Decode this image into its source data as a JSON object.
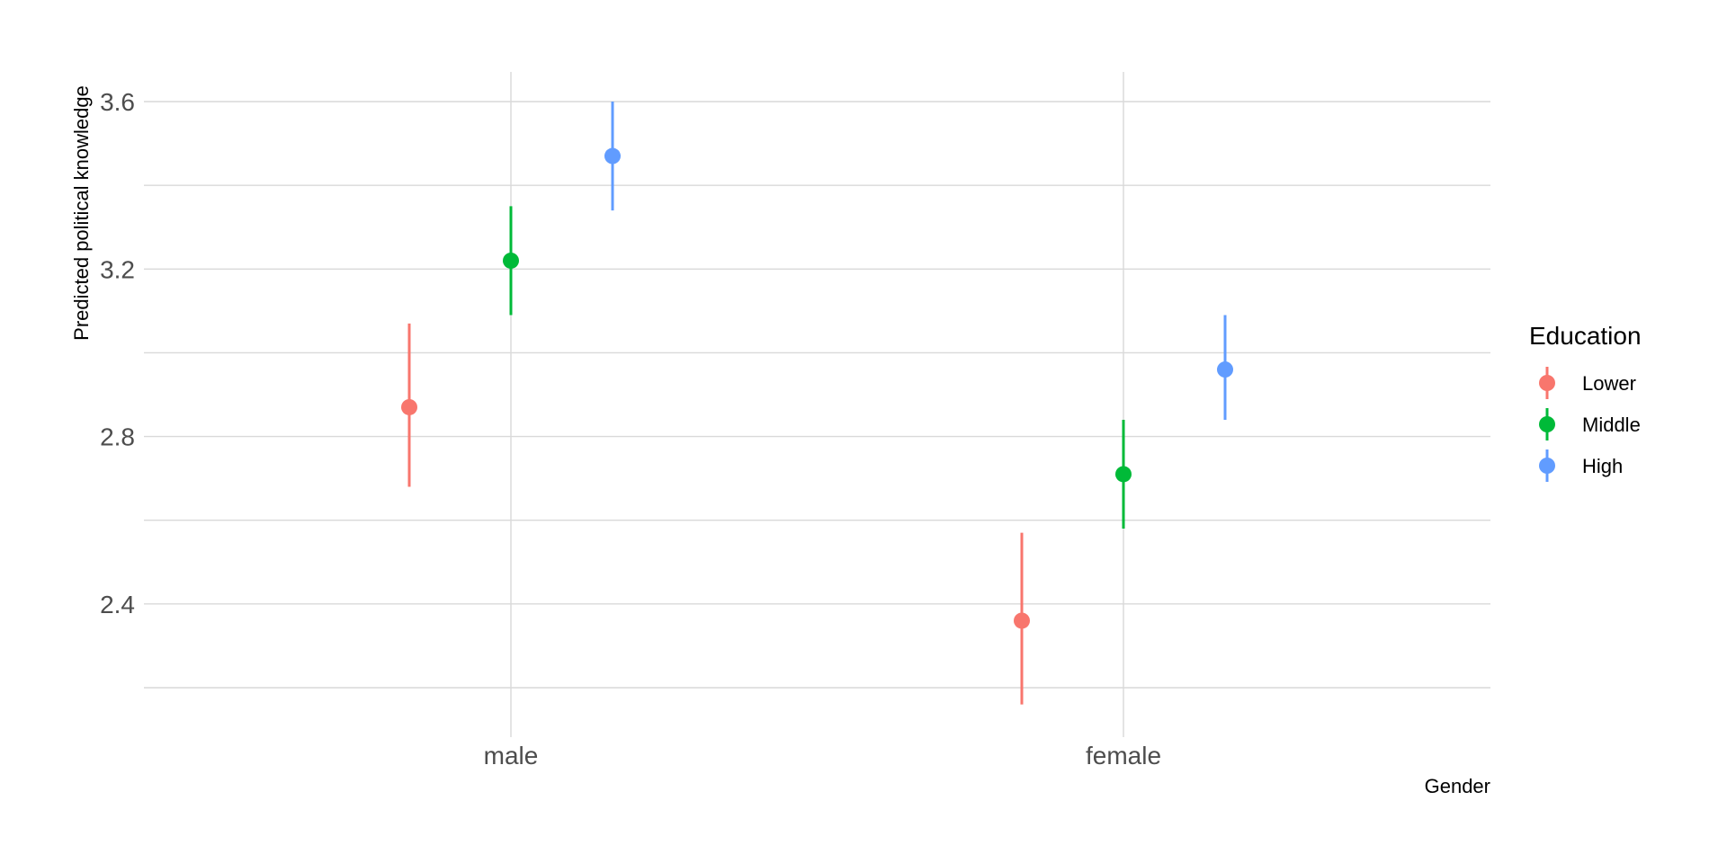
{
  "chart_data": {
    "type": "scatter",
    "title": "",
    "xlabel": "Gender",
    "ylabel": "Predicted political knowledge",
    "categories": [
      "male",
      "female"
    ],
    "ylim": [
      2.18,
      3.67
    ],
    "yticks": [
      "2.4",
      "2.8",
      "3.2",
      "3.6"
    ],
    "grid": true,
    "legend": {
      "title": "Education",
      "placement": "right"
    },
    "series": [
      {
        "name": "Lower",
        "color": "#F8766D",
        "points": [
          {
            "category": "male",
            "y": 2.87,
            "lower": 2.68,
            "upper": 3.07
          },
          {
            "category": "female",
            "y": 2.36,
            "lower": 2.16,
            "upper": 2.57
          }
        ]
      },
      {
        "name": "Middle",
        "color": "#00BA38",
        "points": [
          {
            "category": "male",
            "y": 3.22,
            "lower": 3.09,
            "upper": 3.35
          },
          {
            "category": "female",
            "y": 2.71,
            "lower": 2.58,
            "upper": 2.84
          }
        ]
      },
      {
        "name": "High",
        "color": "#619CFF",
        "points": [
          {
            "category": "male",
            "y": 3.47,
            "lower": 3.34,
            "upper": 3.6
          },
          {
            "category": "female",
            "y": 2.96,
            "lower": 2.84,
            "upper": 3.09
          }
        ]
      }
    ]
  }
}
